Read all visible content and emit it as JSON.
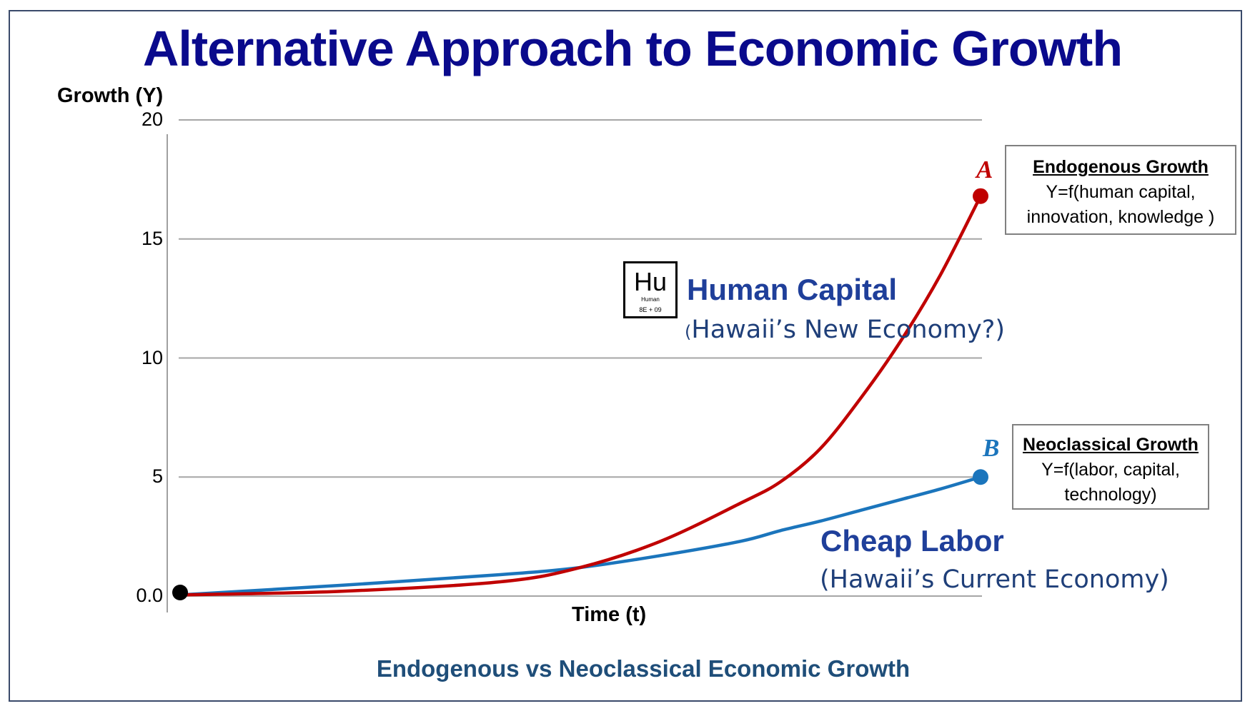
{
  "page": {
    "title": "Alternative Approach to Economic Growth",
    "caption": "Endogenous vs Neoclassical Economic Growth"
  },
  "chart_data": {
    "type": "line",
    "title": "Alternative Approach to Economic Growth",
    "xlabel": "Time (t)",
    "ylabel": "Growth (Y)",
    "ylim": [
      0,
      20
    ],
    "yticks": [
      {
        "value": 0,
        "label": "0.0"
      },
      {
        "value": 5,
        "label": "5"
      },
      {
        "value": 10,
        "label": "10"
      },
      {
        "value": 15,
        "label": "15"
      },
      {
        "value": 20,
        "label": "20"
      }
    ],
    "xlim": [
      0,
      10
    ],
    "grid": true,
    "origin": {
      "x": 0,
      "y": 0.15
    },
    "series": [
      {
        "name": "Human Capital",
        "point_label": "A",
        "color": "#c00000",
        "x": [
          0,
          2,
          4,
          5,
          6,
          7,
          7.5,
          8,
          8.5,
          9,
          9.5,
          10
        ],
        "y": [
          0.05,
          0.2,
          0.6,
          1.2,
          2.3,
          3.9,
          4.8,
          6.2,
          8.3,
          10.7,
          13.5,
          16.8
        ]
      },
      {
        "name": "Cheap Labor",
        "point_label": "B",
        "color": "#1b75bc",
        "x": [
          0,
          2,
          4,
          5,
          6,
          7,
          7.5,
          8,
          8.5,
          9,
          9.5,
          10
        ],
        "y": [
          0.05,
          0.45,
          0.9,
          1.2,
          1.7,
          2.3,
          2.75,
          3.15,
          3.6,
          4.05,
          4.5,
          5.0
        ]
      }
    ]
  },
  "annotations": {
    "human_capital": {
      "title": "Human Capital",
      "subtitle": "Hawaii’s New Economy?)",
      "open_paren": "("
    },
    "cheap_labor": {
      "title": "Cheap Labor",
      "subtitle": "(Hawaii’s Current Economy)"
    },
    "element_badge": {
      "symbol": "Hu",
      "name": "Human",
      "number": "8E + 09"
    },
    "endogenous_box": {
      "head": "Endogenous Growth",
      "line1": "Y=f(human capital,",
      "line2": "innovation, knowledge )"
    },
    "neoclassical_box": {
      "head": "Neoclassical Growth",
      "line1": "Y=f(labor, capital,",
      "line2": "technology)"
    }
  }
}
